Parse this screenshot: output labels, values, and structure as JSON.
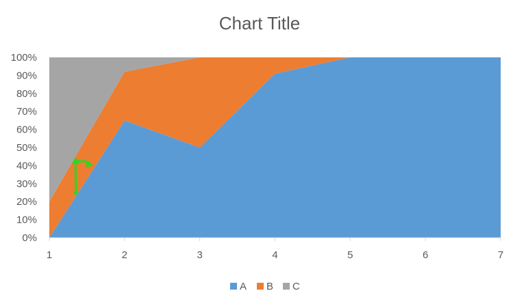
{
  "chart_data": {
    "type": "area",
    "stacked": "percent",
    "title": "Chart Title",
    "xlabel": "",
    "ylabel": "",
    "x": [
      1,
      2,
      3,
      4,
      5,
      6,
      7
    ],
    "ylim": [
      0,
      100
    ],
    "y_ticks": [
      "0%",
      "10%",
      "20%",
      "30%",
      "40%",
      "50%",
      "60%",
      "70%",
      "80%",
      "90%",
      "100%"
    ],
    "x_ticks": [
      "1",
      "2",
      "3",
      "4",
      "5",
      "6",
      "7"
    ],
    "series": [
      {
        "name": "A",
        "color": "#5B9BD5",
        "values": [
          0,
          65,
          50,
          91,
          100,
          100,
          100
        ]
      },
      {
        "name": "B",
        "color": "#ED7D31",
        "values": [
          20,
          27,
          50,
          9,
          0,
          0,
          0
        ]
      },
      {
        "name": "C",
        "color": "#A5A5A5",
        "values": [
          80,
          8,
          0,
          0,
          0,
          0,
          0
        ]
      }
    ],
    "grid": false,
    "legend_position": "bottom",
    "annotation": {
      "shape": "arrows",
      "color": "#22DD22"
    }
  }
}
